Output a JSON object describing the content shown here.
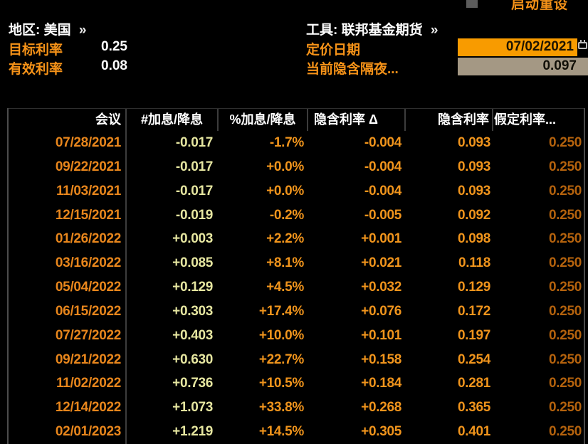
{
  "topbar": {
    "reset_label": "启动重设"
  },
  "header": {
    "region": {
      "label": "地区:",
      "value": "美国",
      "chevron": "»"
    },
    "tool": {
      "label": "工具:",
      "value": "联邦基金期货",
      "chevron": "»"
    },
    "target_rate": {
      "label": "目标利率",
      "value": "0.25"
    },
    "effective_rate": {
      "label": "有效利率",
      "value": "0.08"
    },
    "pricing_date": {
      "label": "定价日期",
      "value": "07/02/2021"
    },
    "implied_overnight": {
      "label": "当前隐含隔夜...",
      "value": "0.097"
    }
  },
  "icons": {
    "pricing_date_icon": "calendar-icon",
    "reset_checkbox": "checkbox-unchecked"
  },
  "table": {
    "columns": [
      "会议",
      "#加息/降息",
      "%加息/降息",
      "隐含利率 Δ",
      "隐含利率",
      "假定利率..."
    ],
    "rows": [
      [
        "07/28/2021",
        "-0.017",
        "-1.7%",
        "-0.004",
        "0.093",
        "0.250"
      ],
      [
        "09/22/2021",
        "-0.017",
        "+0.0%",
        "-0.004",
        "0.093",
        "0.250"
      ],
      [
        "11/03/2021",
        "-0.017",
        "+0.0%",
        "-0.004",
        "0.093",
        "0.250"
      ],
      [
        "12/15/2021",
        "-0.019",
        "-0.2%",
        "-0.005",
        "0.092",
        "0.250"
      ],
      [
        "01/26/2022",
        "+0.003",
        "+2.2%",
        "+0.001",
        "0.098",
        "0.250"
      ],
      [
        "03/16/2022",
        "+0.085",
        "+8.1%",
        "+0.021",
        "0.118",
        "0.250"
      ],
      [
        "05/04/2022",
        "+0.129",
        "+4.5%",
        "+0.032",
        "0.129",
        "0.250"
      ],
      [
        "06/15/2022",
        "+0.303",
        "+17.4%",
        "+0.076",
        "0.172",
        "0.250"
      ],
      [
        "07/27/2022",
        "+0.403",
        "+10.0%",
        "+0.101",
        "0.197",
        "0.250"
      ],
      [
        "09/21/2022",
        "+0.630",
        "+22.7%",
        "+0.158",
        "0.254",
        "0.250"
      ],
      [
        "11/02/2022",
        "+0.736",
        "+10.5%",
        "+0.184",
        "0.281",
        "0.250"
      ],
      [
        "12/14/2022",
        "+1.073",
        "+33.8%",
        "+0.268",
        "0.365",
        "0.250"
      ],
      [
        "02/01/2023",
        "+1.219",
        "+14.5%",
        "+0.305",
        "0.401",
        "0.250"
      ]
    ]
  },
  "colors": {
    "amber_label": "#F59218",
    "white_text": "#FFFFFF",
    "header_text": "#FFFFFF",
    "date_text": "#E8861C",
    "hikes_text": "#E6E6A0",
    "amber_value": "#F0941C",
    "dim_value": "#B4620D",
    "date_field_bg": "#F89B00",
    "date_field_text": "#1E1400",
    "overnight_field_bg": "#A49884",
    "overnight_field_text": "#121008",
    "divider": "#3C3C3C",
    "table_border": "#4C4C4C",
    "checkbox_fill": "#5C5C5C"
  }
}
